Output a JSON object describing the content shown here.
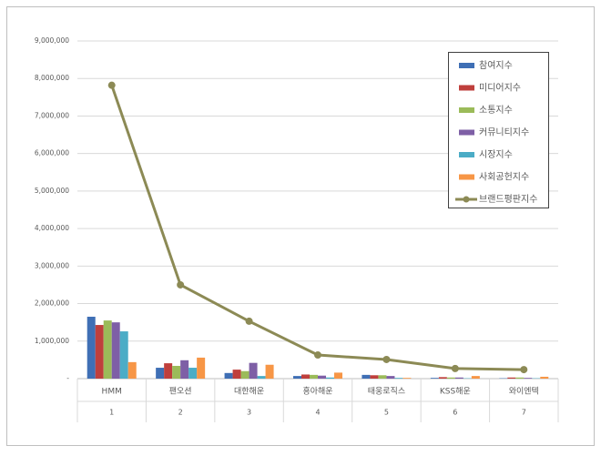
{
  "chart_data": {
    "type": "bar",
    "categories": [
      "HMM",
      "팬오션",
      "대한해운",
      "흥아해운",
      "태웅로직스",
      "KSS해운",
      "와이엔텍"
    ],
    "category_ranks": [
      1,
      2,
      3,
      4,
      5,
      6,
      7
    ],
    "series": [
      {
        "name": "참여지수",
        "color": "#3f6fb5",
        "values": [
          1650000,
          290000,
          150000,
          70000,
          100000,
          20000,
          10000
        ]
      },
      {
        "name": "미디어지수",
        "color": "#bf3f3c",
        "values": [
          1430000,
          410000,
          240000,
          110000,
          90000,
          40000,
          30000
        ]
      },
      {
        "name": "소통지수",
        "color": "#9bbb59",
        "values": [
          1550000,
          340000,
          200000,
          100000,
          90000,
          30000,
          30000
        ]
      },
      {
        "name": "커뮤니티지수",
        "color": "#7e5fa6",
        "values": [
          1500000,
          490000,
          420000,
          80000,
          70000,
          30000,
          20000
        ]
      },
      {
        "name": "시장지수",
        "color": "#4bacc6",
        "values": [
          1260000,
          290000,
          70000,
          30000,
          20000,
          10000,
          10000
        ]
      },
      {
        "name": "사회공헌지수",
        "color": "#f79646",
        "values": [
          440000,
          560000,
          370000,
          160000,
          20000,
          70000,
          50000
        ]
      },
      {
        "name": "브랜드평판지수",
        "color": "#8c8a55",
        "type": "line",
        "values": [
          7820000,
          2500000,
          1530000,
          630000,
          510000,
          270000,
          240000
        ]
      }
    ],
    "ylim": [
      0,
      9000000
    ],
    "yticks": [
      {
        "value": 0,
        "label": "-"
      },
      {
        "value": 1000000,
        "label": "1,000,000"
      },
      {
        "value": 2000000,
        "label": "2,000,000"
      },
      {
        "value": 3000000,
        "label": "3,000,000"
      },
      {
        "value": 4000000,
        "label": "4,000,000"
      },
      {
        "value": 5000000,
        "label": "5,000,000"
      },
      {
        "value": 6000000,
        "label": "6,000,000"
      },
      {
        "value": 7000000,
        "label": "7,000,000"
      },
      {
        "value": 8000000,
        "label": "8,000,000"
      },
      {
        "value": 9000000,
        "label": "9,000,000"
      }
    ],
    "grid": true
  }
}
